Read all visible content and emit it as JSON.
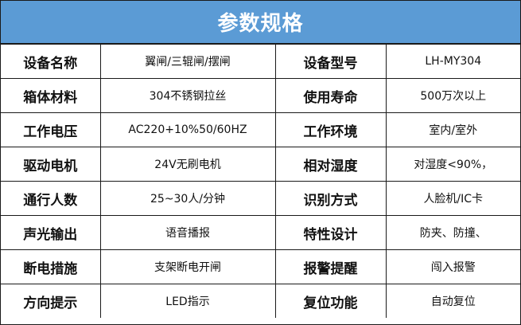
{
  "title": "参数规格",
  "header_color": "#5b9bd5",
  "rows": [
    {
      "k1": "设备名称",
      "v1": "翼闸/三辊闸/摆闸",
      "k2": "设备型号",
      "v2": "LH-MY304"
    },
    {
      "k1": "箱体材料",
      "v1": "304不锈钢拉丝",
      "k2": "使用寿命",
      "v2": "500万次以上"
    },
    {
      "k1": "工作电压",
      "v1": "AC220+10%50/60HZ",
      "k2": "工作环境",
      "v2": "室内/室外"
    },
    {
      "k1": "驱动电机",
      "v1": "24V无刷电机",
      "k2": "相对湿度",
      "v2": "对湿度<90%，"
    },
    {
      "k1": "通行人数",
      "v1": "25~30人/分钟",
      "k2": "识别方式",
      "v2": "人脸机/IC卡"
    },
    {
      "k1": "声光输出",
      "v1": "语音播报",
      "k2": "特性设计",
      "v2": "防夹、防撞、"
    },
    {
      "k1": "断电措施",
      "v1": "支架断电开闸",
      "k2": "报警提醒",
      "v2": "闯入报警"
    },
    {
      "k1": "方向提示",
      "v1": "LED指示",
      "k2": "复位功能",
      "v2": "自动复位"
    }
  ]
}
